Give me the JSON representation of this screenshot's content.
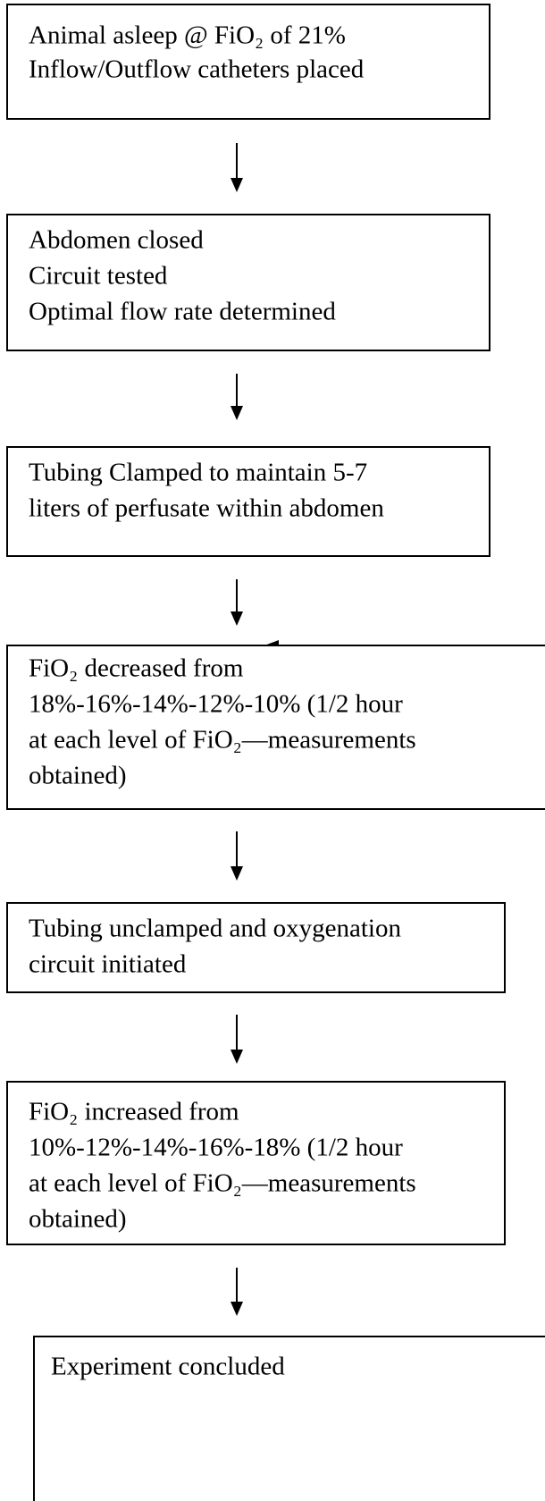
{
  "steps": [
    {
      "lines": [
        "Animal asleep @ FiO₂ of 21%",
        "Inflow/Outflow catheters placed"
      ]
    },
    {
      "lines": [
        "Abdomen closed",
        "Circuit tested",
        "Optimal flow rate determined"
      ]
    },
    {
      "lines": [
        "Tubing Clamped to maintain 5-7",
        "liters of perfusate within abdomen"
      ]
    },
    {
      "lines": [
        "FiO₂ decreased from",
        "18%-16%-14%-12%-10% (1/2 hour",
        "at each level of FiO₂—measurements",
        "obtained)"
      ]
    },
    {
      "lines": [
        "Tubing unclamped and oxygenation",
        "circuit initiated"
      ]
    },
    {
      "lines": [
        "FiO₂ increased from",
        "10%-12%-14%-16%-18% (1/2 hour",
        "at each level of FiO₂—measurements",
        "obtained)"
      ]
    },
    {
      "lines": [
        "Experiment concluded"
      ]
    }
  ]
}
